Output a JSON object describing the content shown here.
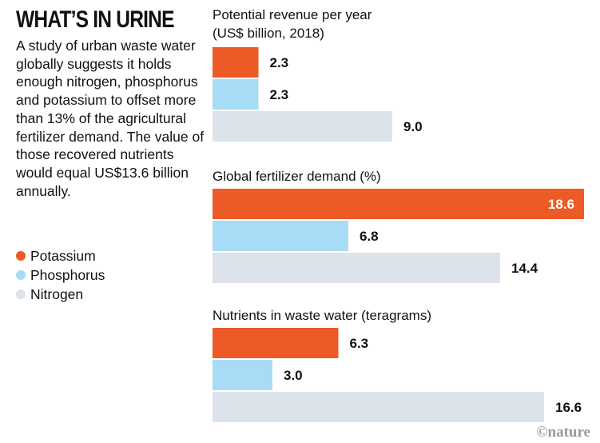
{
  "title": "WHAT’S IN URINE",
  "description": "A study of urban waste water globally suggests it holds enough nitrogen, phosphorus and potassium to offset more than 13% of the agricultural fertilizer demand. The value of those recovered nutrients would equal US$13.6 billion annually.",
  "credit": "©nature",
  "legend": [
    {
      "name": "Potassium",
      "color": "#EC5B26"
    },
    {
      "name": "Phosphorus",
      "color": "#A8DBF6"
    },
    {
      "name": "Nitrogen",
      "color": "#DDE3EA"
    }
  ],
  "chart_data": [
    {
      "type": "bar",
      "orientation": "horizontal",
      "title_lines": [
        "Potential revenue per year",
        "(US$ billion, 2018)"
      ],
      "categories": [
        "Potassium",
        "Phosphorus",
        "Nitrogen"
      ],
      "values": [
        2.3,
        2.3,
        9.0
      ],
      "labels": [
        "2.3",
        "2.3",
        "9.0"
      ]
    },
    {
      "type": "bar",
      "orientation": "horizontal",
      "title_lines": [
        "Global fertilizer demand (%)"
      ],
      "categories": [
        "Potassium",
        "Phosphorus",
        "Nitrogen"
      ],
      "values": [
        18.6,
        6.8,
        14.4
      ],
      "labels": [
        "18.6",
        "6.8",
        "14.4"
      ]
    },
    {
      "type": "bar",
      "orientation": "horizontal",
      "title_lines": [
        "Nutrients in waste water (teragrams)"
      ],
      "categories": [
        "Potassium",
        "Phosphorus",
        "Nitrogen"
      ],
      "values": [
        6.3,
        3.0,
        16.6
      ],
      "labels": [
        "6.3",
        "3.0",
        "16.6"
      ]
    }
  ]
}
